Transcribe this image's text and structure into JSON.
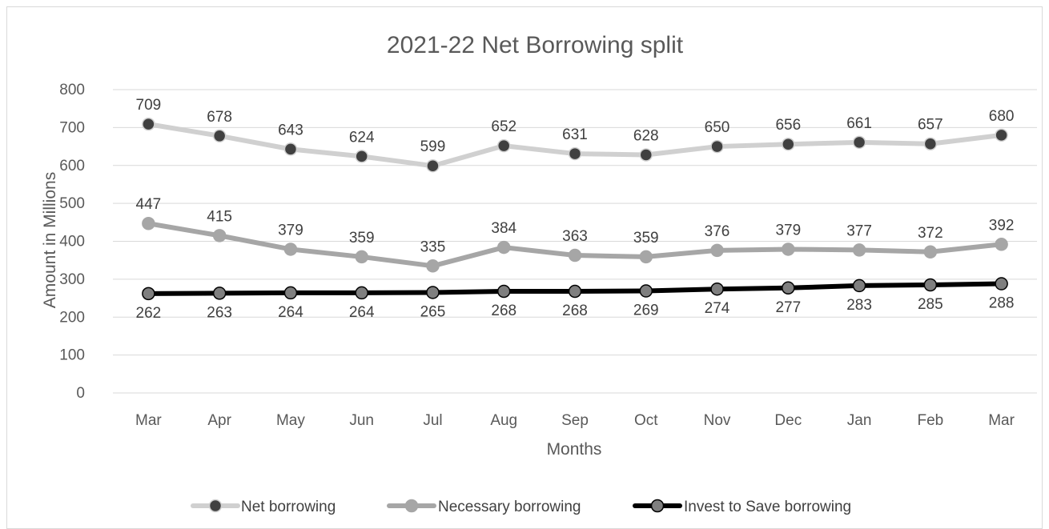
{
  "chart_data": {
    "type": "line",
    "title": "2021-22 Net Borrowing split",
    "xlabel": "Months",
    "ylabel": "Amount in Millions",
    "ylim": [
      0,
      800
    ],
    "yticks": [
      0,
      100,
      200,
      300,
      400,
      500,
      600,
      700,
      800
    ],
    "grid": true,
    "legend_position": "bottom",
    "categories": [
      "Mar",
      "Apr",
      "May",
      "Jun",
      "Jul",
      "Aug",
      "Sep",
      "Oct",
      "Nov",
      "Dec",
      "Jan",
      "Feb",
      "Mar"
    ],
    "series": [
      {
        "name": "Net borrowing",
        "values": [
          709,
          678,
          643,
          624,
          599,
          652,
          631,
          628,
          650,
          656,
          661,
          657,
          680
        ],
        "line_color": "#d0d0d0",
        "marker_color": "#404040",
        "label_position": "above"
      },
      {
        "name": "Necessary borrowing",
        "values": [
          447,
          415,
          379,
          359,
          335,
          384,
          363,
          359,
          376,
          379,
          377,
          372,
          392
        ],
        "line_color": "#a6a6a6",
        "marker_color": "#a6a6a6",
        "label_position": "above"
      },
      {
        "name": "Invest to Save borrowing",
        "values": [
          262,
          263,
          264,
          264,
          265,
          268,
          268,
          269,
          274,
          277,
          283,
          285,
          288
        ],
        "line_color": "#000000",
        "marker_color": "#7f7f7f",
        "label_position": "below"
      }
    ]
  }
}
